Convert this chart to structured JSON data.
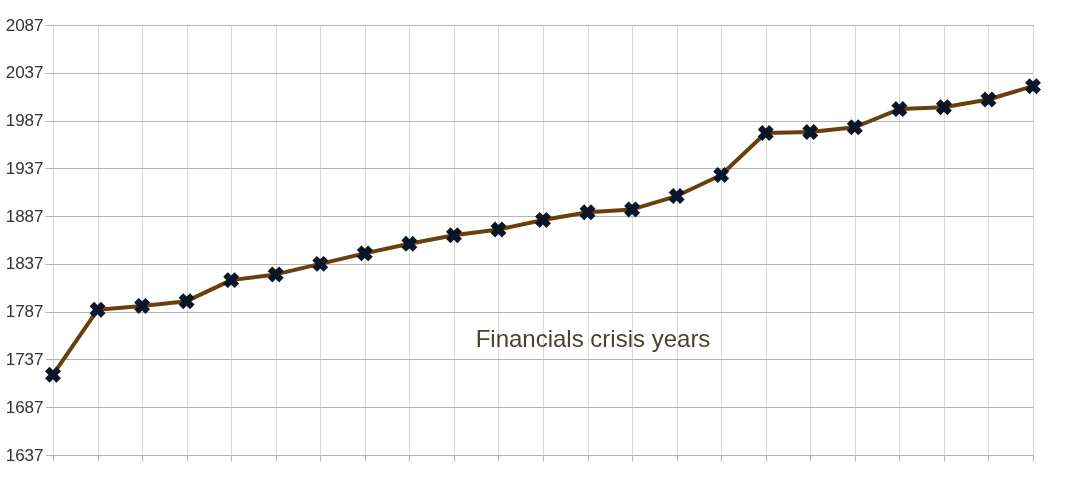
{
  "chart_data": {
    "type": "line",
    "categories": [
      null,
      null,
      null,
      null,
      null,
      null,
      null,
      null,
      null,
      null,
      null,
      null,
      null,
      null,
      null,
      null,
      null,
      null,
      null,
      null,
      null,
      null,
      null
    ],
    "series": [
      {
        "color": "#6b3f0b",
        "values": [
          1721,
          1789,
          1793,
          1798,
          1820,
          1826,
          1837,
          1848,
          1858,
          1867,
          1873,
          1883,
          1891,
          1894,
          1908,
          1930,
          1974,
          1975,
          1980,
          1999,
          2001,
          2009,
          2023
        ]
      }
    ],
    "ylim": [
      1637,
      2087
    ],
    "yticks": [
      1637,
      1687,
      1737,
      1787,
      1837,
      1887,
      1937,
      1987,
      2037,
      2087
    ],
    "grid": true,
    "marker": "cross",
    "line_style": "solid",
    "annotations": [
      "Financials crisis years"
    ]
  }
}
